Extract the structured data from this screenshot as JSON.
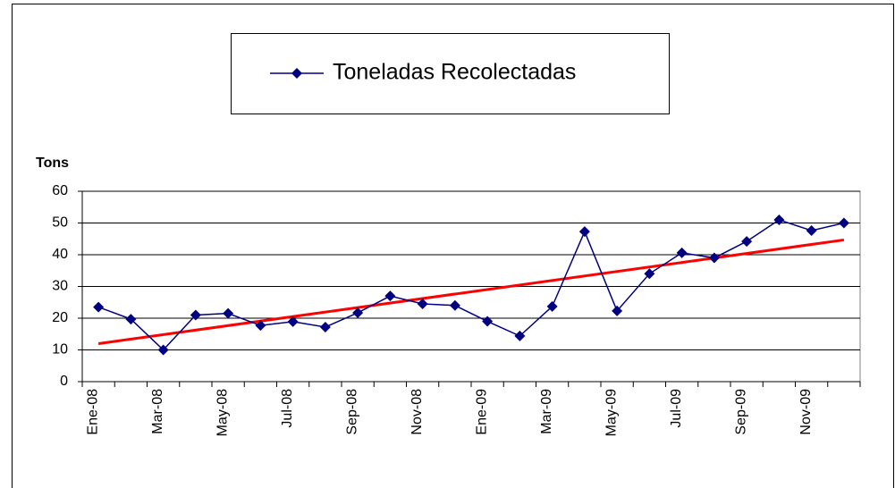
{
  "chart_data": {
    "type": "line",
    "title": null,
    "legend_label": "Toneladas Recolectadas",
    "y_label": "Tons",
    "categories": [
      "Ene-08",
      null,
      "Mar-08",
      null,
      "May-08",
      null,
      "Jul-08",
      null,
      "Sep-08",
      null,
      "Nov-08",
      null,
      "Ene-09",
      null,
      "Mar-09",
      null,
      "May-09",
      null,
      "Jul-09",
      null,
      "Sep-09",
      null,
      "Nov-09",
      null
    ],
    "series": [
      {
        "name": "Toneladas Recolectadas",
        "color": "#000080",
        "values": [
          23.5,
          19.7,
          10,
          21,
          21.5,
          17.7,
          18.9,
          17.2,
          21.7,
          27,
          24.5,
          24,
          19,
          14.4,
          23.7,
          47.3,
          22.3,
          34,
          40.6,
          39,
          44.2,
          51,
          47.6,
          50
        ]
      }
    ],
    "trendline": true,
    "trendline_color": "#ff0000",
    "ylim": [
      0,
      60
    ],
    "yticks": [
      0,
      10,
      20,
      30,
      40,
      50,
      60
    ],
    "grid": true
  }
}
